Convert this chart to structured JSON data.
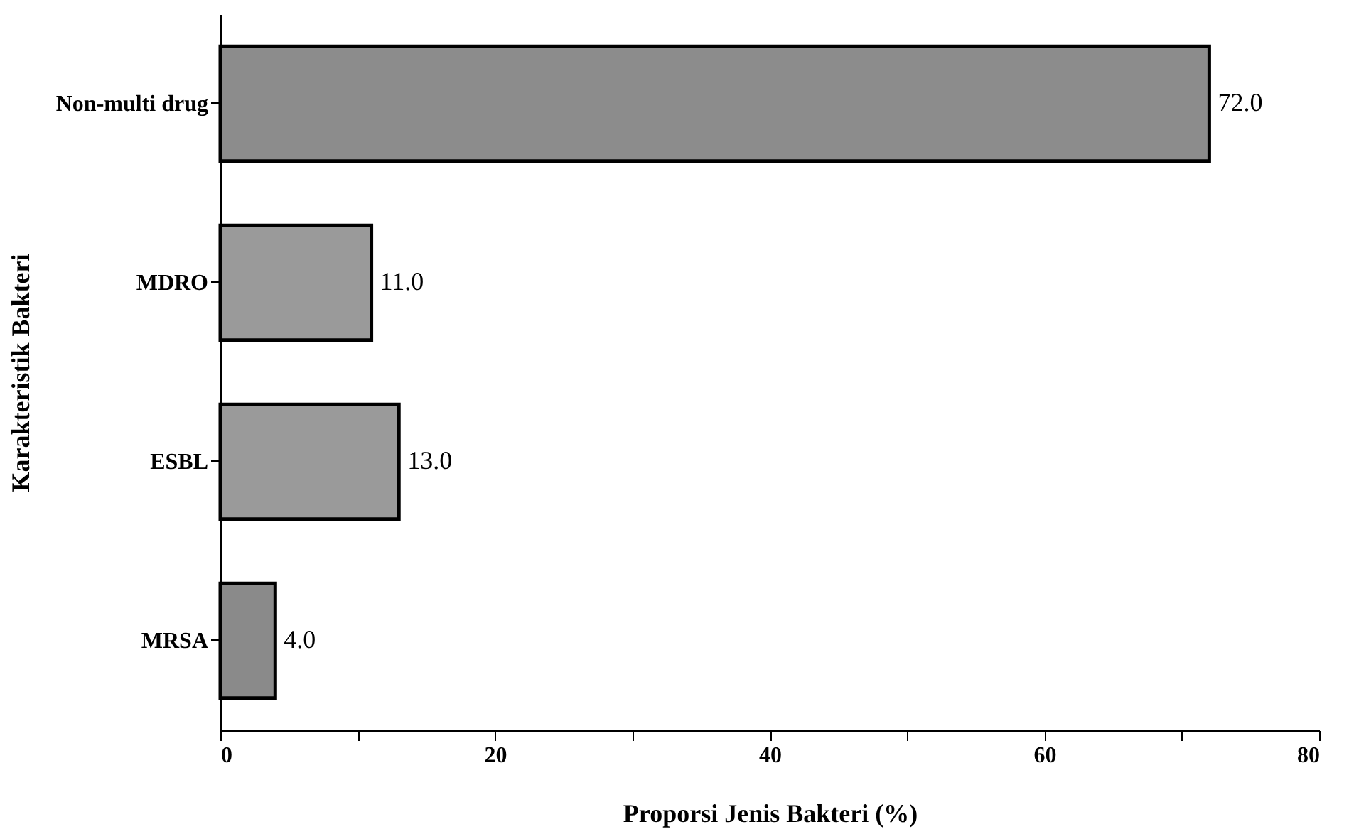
{
  "chart_data": {
    "type": "bar",
    "orientation": "horizontal",
    "xlabel": "Proporsi Jenis Bakteri (%)",
    "ylabel": "Karakteristik  Bakteri",
    "categories": [
      "Non-multi drug",
      "MDRO",
      "ESBL",
      "MRSA"
    ],
    "values": [
      72,
      11,
      13,
      4
    ],
    "value_labels": [
      "72.0",
      "11.0",
      "13.0",
      "4.0"
    ],
    "colors": [
      "#8c8c8c",
      "#9a9a9a",
      "#9a9a9a",
      "#8a8a8a"
    ],
    "xlim": [
      0,
      80
    ],
    "xticks": [
      0,
      {
        "value": 10,
        "label": null
      },
      20,
      {
        "value": 30,
        "label": null
      },
      40,
      {
        "value": 50,
        "label": null
      },
      60,
      {
        "value": 70,
        "label": null
      },
      80
    ],
    "grid": false
  }
}
